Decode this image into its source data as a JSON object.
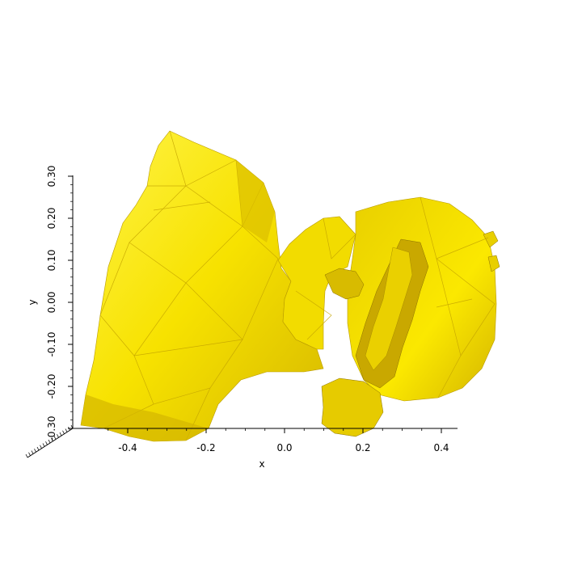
{
  "axes": {
    "x": {
      "label": "x",
      "ticks": [
        {
          "value": -0.4,
          "label": "-0.4"
        },
        {
          "value": -0.2,
          "label": "-0.2"
        },
        {
          "value": 0.0,
          "label": "0.0"
        },
        {
          "value": 0.2,
          "label": "0.2"
        },
        {
          "value": 0.4,
          "label": "0.4"
        }
      ]
    },
    "y": {
      "label": "y",
      "ticks": [
        {
          "value": -0.3,
          "label": "-0.30"
        },
        {
          "value": -0.2,
          "label": "-0.20"
        },
        {
          "value": -0.1,
          "label": "-0.10"
        },
        {
          "value": 0.0,
          "label": "0.00"
        },
        {
          "value": 0.1,
          "label": "0.10"
        },
        {
          "value": 0.2,
          "label": "0.20"
        },
        {
          "value": 0.3,
          "label": "0.30"
        }
      ]
    }
  },
  "surface": {
    "base_color": "#f5e000",
    "light_color": "#fff230",
    "dark_color": "#c9a800",
    "edge_color": "#8a7000"
  }
}
